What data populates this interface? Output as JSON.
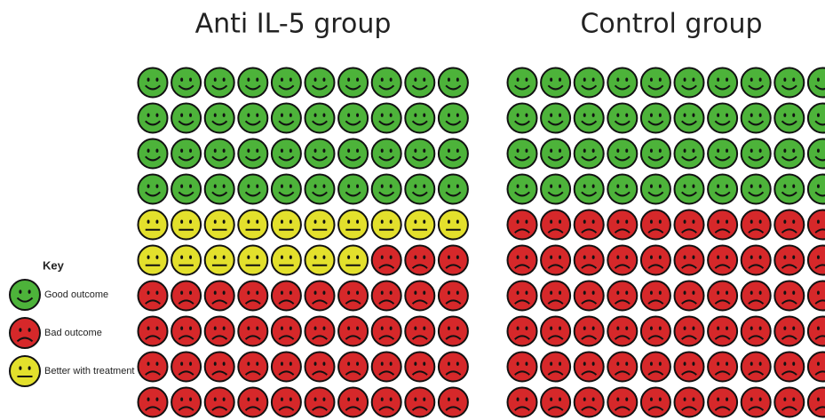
{
  "chart_data": {
    "type": "waffle",
    "categories": [
      "Anti IL-5 group",
      "Control group"
    ],
    "legend_title": "Key",
    "series": [
      {
        "name": "Good outcome",
        "color": "#4db33a",
        "values": [
          40,
          40
        ]
      },
      {
        "name": "Bad outcome",
        "color": "#d6282a",
        "values": [
          43,
          60
        ]
      },
      {
        "name": "Better with treatment",
        "color": "#e3e02c",
        "values": [
          17,
          0
        ]
      }
    ]
  }
}
